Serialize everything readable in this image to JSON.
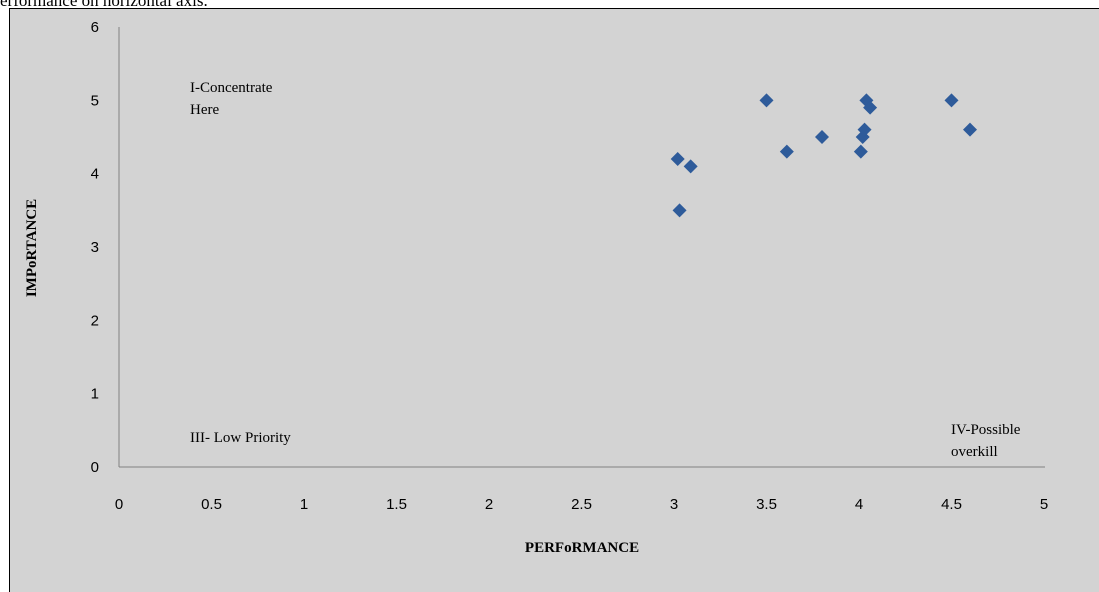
{
  "caption_fragment": "erformance on horizontal axis.",
  "chart_data": {
    "type": "scatter",
    "xlabel": "PERFoRMANCE",
    "ylabel": "IMPoRTANCE",
    "xlim": [
      0,
      5
    ],
    "ylim": [
      0,
      6
    ],
    "x_ticks": [
      "0",
      "0.5",
      "1",
      "1.5",
      "2",
      "2.5",
      "3",
      "3.5",
      "4",
      "4.5",
      "5"
    ],
    "y_ticks": [
      "0",
      "1",
      "2",
      "3",
      "4",
      "5",
      "6"
    ],
    "grid": false,
    "marker": "diamond",
    "marker_color": "#2e5b9a",
    "background_color": "#d3d3d3",
    "points": [
      {
        "x": 3.02,
        "y": 4.2
      },
      {
        "x": 3.09,
        "y": 4.1
      },
      {
        "x": 3.03,
        "y": 3.5
      },
      {
        "x": 3.5,
        "y": 5.0
      },
      {
        "x": 3.61,
        "y": 4.3
      },
      {
        "x": 3.8,
        "y": 4.5
      },
      {
        "x": 4.01,
        "y": 4.3
      },
      {
        "x": 4.02,
        "y": 4.5
      },
      {
        "x": 4.03,
        "y": 4.6
      },
      {
        "x": 4.04,
        "y": 5.0
      },
      {
        "x": 4.06,
        "y": 4.9
      },
      {
        "x": 4.5,
        "y": 5.0
      },
      {
        "x": 4.6,
        "y": 4.6
      }
    ],
    "annotations": [
      {
        "id": "q1",
        "lines": [
          "I-Concentrate",
          "Here"
        ]
      },
      {
        "id": "q3",
        "lines": [
          "III- Low Priority"
        ]
      },
      {
        "id": "q4",
        "lines": [
          "IV-Possible",
          "overkill"
        ]
      }
    ]
  }
}
